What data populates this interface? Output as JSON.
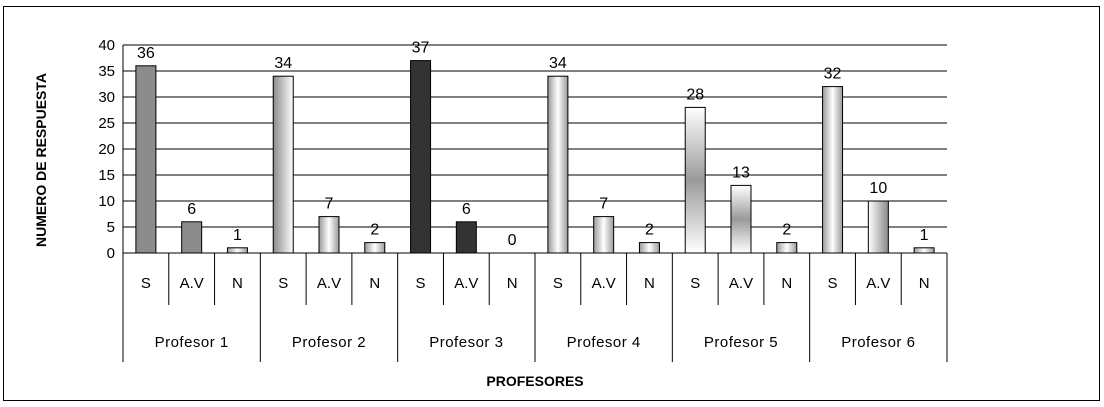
{
  "chart_data": {
    "type": "bar",
    "xlabel": "PROFESORES",
    "ylabel": "NUMERO DE RESPUESTA",
    "ylim": [
      0,
      40
    ],
    "yticks": [
      "0",
      "5",
      "10",
      "15",
      "20",
      "25",
      "30",
      "35",
      "40"
    ],
    "grid": true,
    "groups": [
      {
        "name": "Profesor 1",
        "categories": [
          "S",
          "A.V",
          "N"
        ],
        "values": [
          36,
          6,
          1
        ],
        "labels": [
          "36",
          "6",
          "1"
        ]
      },
      {
        "name": "Profesor 2",
        "categories": [
          "S",
          "A.V",
          "N"
        ],
        "values": [
          34,
          7,
          2
        ],
        "labels": [
          "34",
          "7",
          "2"
        ]
      },
      {
        "name": "Profesor 3",
        "categories": [
          "S",
          "A.V",
          "N"
        ],
        "values": [
          37,
          6,
          0
        ],
        "labels": [
          "37",
          "6",
          "0"
        ]
      },
      {
        "name": "Profesor 4",
        "categories": [
          "S",
          "A.V",
          "N"
        ],
        "values": [
          34,
          7,
          2
        ],
        "labels": [
          "34",
          "7",
          "2"
        ]
      },
      {
        "name": "Profesor 5",
        "categories": [
          "S",
          "A.V",
          "N"
        ],
        "values": [
          28,
          13,
          2
        ],
        "labels": [
          "28",
          "13",
          "2"
        ]
      },
      {
        "name": "Profesor 6",
        "categories": [
          "S",
          "A.V",
          "N"
        ],
        "values": [
          32,
          10,
          1
        ],
        "labels": [
          "32",
          "10",
          "1"
        ]
      }
    ],
    "colors": {
      "grid": "#000000",
      "solid_gray": "#8c8c8c",
      "solid_dark": "#333333",
      "gradient_light": "#ffffff",
      "gradient_mid": "#9a9a9a"
    }
  }
}
